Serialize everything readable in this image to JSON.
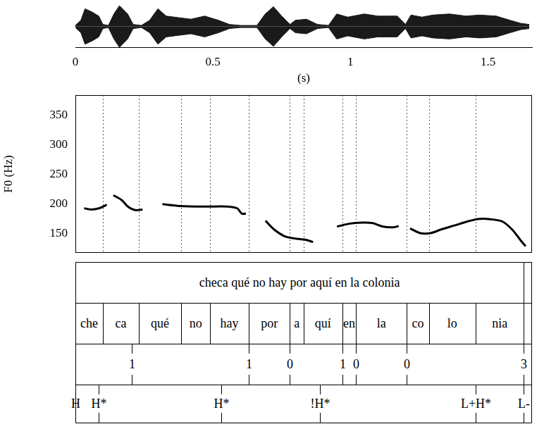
{
  "chart_data": {
    "type": "line",
    "x_label": "(s)",
    "y_label": "F0 (Hz)",
    "xlim": [
      0,
      1.66
    ],
    "xticks": [
      0,
      0.5,
      1,
      1.5
    ],
    "ylim": [
      118,
      384
    ],
    "yticks": [
      150,
      200,
      250,
      300,
      350
    ],
    "grid": false,
    "color": "#000000",
    "x": [
      0.032,
      0.057,
      0.086,
      0.114,
      0.126,
      0.138,
      0.168,
      0.193,
      0.217,
      0.244,
      0.28,
      0.316,
      0.378,
      0.477,
      0.551,
      0.588,
      0.605,
      0.62,
      0.655,
      0.691,
      0.723,
      0.76,
      0.798,
      0.835,
      0.864,
      0.908,
      0.951,
      0.995,
      1.044,
      1.081,
      1.119,
      1.156,
      1.175,
      1.196,
      1.217,
      1.254,
      1.291,
      1.328,
      1.378,
      1.427,
      1.464,
      1.501,
      1.551,
      1.588,
      1.62,
      1.637
    ],
    "values": [
      193,
      191,
      193,
      199,
      null,
      215,
      207,
      195,
      190,
      191,
      null,
      200,
      197,
      196,
      196,
      193,
      184,
      184,
      null,
      172,
      157,
      146,
      142,
      140,
      136,
      null,
      162,
      167,
      169,
      168,
      162,
      161,
      163,
      null,
      159,
      151,
      151,
      157,
      164,
      171,
      175,
      175,
      171,
      157,
      138,
      129
    ],
    "waveform": {
      "color": "#1a1a1a",
      "ylim": [
        -1,
        1
      ],
      "x": [
        0,
        0.02,
        0.035,
        0.06,
        0.085,
        0.1,
        0.12,
        0.14,
        0.16,
        0.19,
        0.21,
        0.24,
        0.27,
        0.3,
        0.33,
        0.36,
        0.42,
        0.47,
        0.52,
        0.56,
        0.6,
        0.66,
        0.69,
        0.72,
        0.75,
        0.78,
        0.8,
        0.84,
        0.88,
        0.92,
        0.95,
        0.99,
        1.05,
        1.1,
        1.17,
        1.2,
        1.22,
        1.26,
        1.3,
        1.36,
        1.42,
        1.47,
        1.53,
        1.58,
        1.62,
        1.65
      ],
      "amplitude": [
        0.05,
        0.3,
        0.85,
        0.7,
        0.5,
        0.1,
        0.05,
        0.6,
        1.0,
        0.6,
        0.1,
        0.05,
        0.3,
        0.85,
        0.5,
        0.45,
        0.35,
        0.5,
        0.3,
        0.1,
        0.05,
        0.05,
        0.6,
        0.95,
        0.5,
        0.1,
        0.3,
        0.35,
        0.1,
        0.05,
        0.6,
        0.45,
        0.6,
        0.5,
        0.5,
        0.1,
        0.55,
        0.45,
        0.55,
        0.6,
        0.5,
        0.55,
        0.5,
        0.3,
        0.15,
        0.1
      ]
    },
    "tiers": [
      {
        "kind": "interval",
        "intervals": [
          {
            "start": 0,
            "end": 1.63,
            "label": "checa qué no hay por aquí en la colonia"
          }
        ]
      },
      {
        "kind": "interval",
        "intervals": [
          {
            "start": 0,
            "end": 0.1,
            "label": "che"
          },
          {
            "start": 0.1,
            "end": 0.23,
            "label": "ca"
          },
          {
            "start": 0.23,
            "end": 0.385,
            "label": "qué"
          },
          {
            "start": 0.385,
            "end": 0.49,
            "label": "no"
          },
          {
            "start": 0.49,
            "end": 0.63,
            "label": "hay"
          },
          {
            "start": 0.63,
            "end": 0.78,
            "label": "por"
          },
          {
            "start": 0.78,
            "end": 0.83,
            "label": "a"
          },
          {
            "start": 0.83,
            "end": 0.97,
            "label": "quí"
          },
          {
            "start": 0.97,
            "end": 1.02,
            "label": "en"
          },
          {
            "start": 1.02,
            "end": 1.205,
            "label": "la"
          },
          {
            "start": 1.205,
            "end": 1.285,
            "label": "co"
          },
          {
            "start": 1.285,
            "end": 1.455,
            "label": "lo"
          },
          {
            "start": 1.455,
            "end": 1.63,
            "label": "nia"
          }
        ]
      },
      {
        "kind": "point",
        "points": [
          {
            "time": 0.205,
            "label": "1"
          },
          {
            "time": 0.63,
            "label": "1"
          },
          {
            "time": 0.78,
            "label": "0"
          },
          {
            "time": 0.97,
            "label": "1"
          },
          {
            "time": 1.02,
            "label": "0"
          },
          {
            "time": 1.205,
            "label": "0"
          },
          {
            "time": 1.63,
            "label": "3"
          }
        ]
      },
      {
        "kind": "point",
        "points": [
          {
            "time": 0,
            "label": "H"
          },
          {
            "time": 0.085,
            "label": "H*"
          },
          {
            "time": 0.53,
            "label": "H*"
          },
          {
            "time": 0.89,
            "label": "!H*"
          },
          {
            "time": 1.455,
            "label": "L+H*"
          },
          {
            "time": 1.63,
            "label": "L-"
          }
        ]
      }
    ]
  }
}
